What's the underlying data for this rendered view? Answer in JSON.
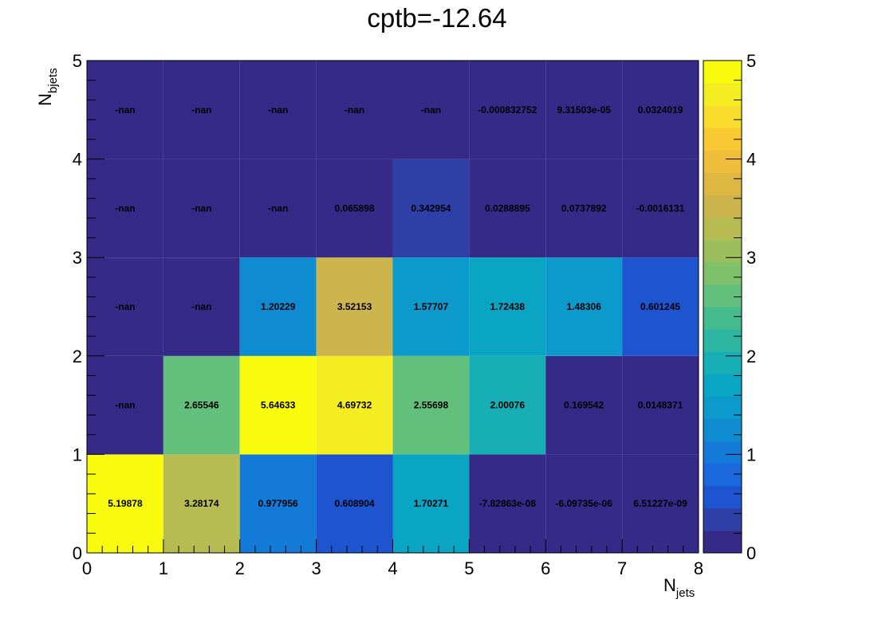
{
  "chart_data": {
    "type": "heatmap",
    "title": "cptb=-12.64",
    "xlabel": {
      "base": "N",
      "sub": "jets"
    },
    "ylabel": {
      "base": "N",
      "sub": "bjets"
    },
    "x_edges": [
      0,
      1,
      2,
      3,
      4,
      5,
      6,
      7,
      8
    ],
    "y_edges": [
      0,
      1,
      2,
      3,
      4,
      5
    ],
    "xlim": [
      0,
      8
    ],
    "ylim": [
      0,
      5
    ],
    "x_ticks": [
      "0",
      "1",
      "2",
      "3",
      "4",
      "5",
      "6",
      "7",
      "8"
    ],
    "y_ticks": [
      "0",
      "1",
      "2",
      "3",
      "4",
      "5"
    ],
    "color_scale": {
      "min": 0,
      "max": 5,
      "ticks": [
        "0",
        "1",
        "2",
        "3",
        "4",
        "5"
      ]
    },
    "palette": [
      "#352a87",
      "#2f3fa8",
      "#1f54d0",
      "#1a67de",
      "#137ad8",
      "#0f8bd1",
      "#0b9acb",
      "#0aa5c4",
      "#17aeb6",
      "#2db6a2",
      "#45bc8e",
      "#62bf7c",
      "#7fc16b",
      "#9bbf5c",
      "#b6bb52",
      "#ccb54c",
      "#dfb743",
      "#efbe3a",
      "#f9c934",
      "#f9dc2b",
      "#f4ed22",
      "#f9fb0e"
    ],
    "nan_color": "#352a87",
    "cells": [
      [
        {
          "v": 5.19878,
          "label": "5.19878"
        },
        {
          "v": 3.28174,
          "label": "3.28174"
        },
        {
          "v": 0.977956,
          "label": "0.977956"
        },
        {
          "v": 0.608904,
          "label": "0.608904"
        },
        {
          "v": 1.70271,
          "label": "1.70271"
        },
        {
          "v": -7.82863e-08,
          "label": "-7.82863e-08"
        },
        {
          "v": -6.09735e-06,
          "label": "-6.09735e-06"
        },
        {
          "v": 6.51227e-09,
          "label": "6.51227e-09"
        }
      ],
      [
        {
          "v": null,
          "label": "-nan"
        },
        {
          "v": 2.65546,
          "label": "2.65546"
        },
        {
          "v": 5.64633,
          "label": "5.64633"
        },
        {
          "v": 4.69732,
          "label": "4.69732"
        },
        {
          "v": 2.55698,
          "label": "2.55698"
        },
        {
          "v": 2.00076,
          "label": "2.00076"
        },
        {
          "v": 0.169542,
          "label": "0.169542"
        },
        {
          "v": 0.0148371,
          "label": "0.0148371"
        }
      ],
      [
        {
          "v": null,
          "label": "-nan"
        },
        {
          "v": null,
          "label": "-nan"
        },
        {
          "v": 1.20229,
          "label": "1.20229"
        },
        {
          "v": 3.52153,
          "label": "3.52153"
        },
        {
          "v": 1.57707,
          "label": "1.57707"
        },
        {
          "v": 1.72438,
          "label": "1.72438"
        },
        {
          "v": 1.48306,
          "label": "1.48306"
        },
        {
          "v": 0.601245,
          "label": "0.601245"
        }
      ],
      [
        {
          "v": null,
          "label": "-nan"
        },
        {
          "v": null,
          "label": "-nan"
        },
        {
          "v": null,
          "label": "-nan"
        },
        {
          "v": 0.065898,
          "label": "0.065898"
        },
        {
          "v": 0.342954,
          "label": "0.342954"
        },
        {
          "v": 0.0288895,
          "label": "0.0288895"
        },
        {
          "v": 0.0737892,
          "label": "0.0737892"
        },
        {
          "v": -0.0016131,
          "label": "-0.0016131"
        }
      ],
      [
        {
          "v": null,
          "label": "-nan"
        },
        {
          "v": null,
          "label": "-nan"
        },
        {
          "v": null,
          "label": "-nan"
        },
        {
          "v": null,
          "label": "-nan"
        },
        {
          "v": null,
          "label": "-nan"
        },
        {
          "v": -0.000832752,
          "label": "-0.000832752"
        },
        {
          "v": 9.31503e-05,
          "label": "9.31503e-05"
        },
        {
          "v": 0.0324019,
          "label": "0.0324019"
        }
      ]
    ]
  }
}
